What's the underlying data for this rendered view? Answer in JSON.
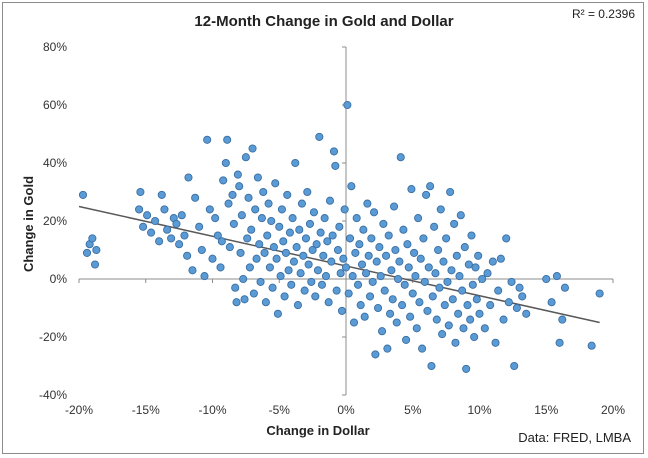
{
  "chart_data": {
    "type": "scatter",
    "title": "12-Month Change in Gold and Dollar",
    "xlabel": "Change in Dollar",
    "ylabel": "Change in Gold",
    "annotation": "R² = 0.2396",
    "source": "Data: FRED, LMBA",
    "xlim": [
      -20,
      20
    ],
    "ylim": [
      -40,
      80
    ],
    "x_ticks": [
      -20,
      -15,
      -10,
      -5,
      0,
      5,
      10,
      15,
      20
    ],
    "y_ticks": [
      -40,
      -20,
      0,
      20,
      40,
      60,
      80
    ],
    "x_tick_labels": [
      "-20%",
      "-15%",
      "-10%",
      "-5%",
      "0%",
      "5%",
      "10%",
      "15%",
      "20%"
    ],
    "y_tick_labels": [
      "-40%",
      "-20%",
      "0%",
      "20%",
      "40%",
      "60%",
      "80%"
    ],
    "grid": false,
    "marker_color": "#5b9bd5",
    "marker_edge": "#3a6fa3",
    "trendline": {
      "x": [
        -20,
        19
      ],
      "y": [
        25,
        -15
      ]
    },
    "points": [
      [
        -19.7,
        29
      ],
      [
        -19.4,
        9
      ],
      [
        -19.2,
        12
      ],
      [
        -19.0,
        14
      ],
      [
        -18.8,
        5
      ],
      [
        -18.7,
        10
      ],
      [
        -15.5,
        24
      ],
      [
        -15.4,
        30
      ],
      [
        -15.2,
        18
      ],
      [
        -14.9,
        22
      ],
      [
        -14.6,
        16
      ],
      [
        -14.3,
        20
      ],
      [
        -14.0,
        13
      ],
      [
        -13.8,
        29
      ],
      [
        -13.6,
        24
      ],
      [
        -13.4,
        17
      ],
      [
        -13.1,
        14
      ],
      [
        -12.9,
        21
      ],
      [
        -12.7,
        19
      ],
      [
        -12.5,
        12
      ],
      [
        -12.3,
        22
      ],
      [
        -12.1,
        15
      ],
      [
        -11.9,
        8
      ],
      [
        -11.8,
        35
      ],
      [
        -11.5,
        3
      ],
      [
        -11.3,
        28
      ],
      [
        -11.0,
        18
      ],
      [
        -10.8,
        10
      ],
      [
        -10.6,
        1
      ],
      [
        -10.4,
        48
      ],
      [
        -10.2,
        24
      ],
      [
        -10.0,
        7
      ],
      [
        -9.8,
        21
      ],
      [
        -9.6,
        15
      ],
      [
        -9.4,
        4
      ],
      [
        -9.3,
        13
      ],
      [
        -9.2,
        34
      ],
      [
        -9.0,
        40
      ],
      [
        -8.9,
        48
      ],
      [
        -8.8,
        26
      ],
      [
        -8.7,
        11
      ],
      [
        -8.5,
        29
      ],
      [
        -8.4,
        19
      ],
      [
        -8.3,
        -3
      ],
      [
        -8.2,
        -8
      ],
      [
        -8.1,
        36
      ],
      [
        -8.0,
        32
      ],
      [
        -7.9,
        9
      ],
      [
        -7.8,
        22
      ],
      [
        -7.7,
        0
      ],
      [
        -7.6,
        -7
      ],
      [
        -7.5,
        42
      ],
      [
        -7.4,
        14
      ],
      [
        -7.3,
        28
      ],
      [
        -7.2,
        4
      ],
      [
        -7.1,
        17
      ],
      [
        -7.0,
        45
      ],
      [
        -6.9,
        -5
      ],
      [
        -6.8,
        24
      ],
      [
        -6.7,
        7
      ],
      [
        -6.6,
        35
      ],
      [
        -6.5,
        12
      ],
      [
        -6.4,
        -1
      ],
      [
        -6.3,
        21
      ],
      [
        -6.2,
        30
      ],
      [
        -6.1,
        9
      ],
      [
        -6.0,
        -8
      ],
      [
        -5.9,
        15
      ],
      [
        -5.8,
        26
      ],
      [
        -5.7,
        4
      ],
      [
        -5.6,
        20
      ],
      [
        -5.5,
        -3
      ],
      [
        -5.4,
        11
      ],
      [
        -5.3,
        33
      ],
      [
        -5.2,
        7
      ],
      [
        -5.1,
        -12
      ],
      [
        -5.0,
        18
      ],
      [
        -4.9,
        1
      ],
      [
        -4.8,
        24
      ],
      [
        -4.7,
        13
      ],
      [
        -4.6,
        -6
      ],
      [
        -4.5,
        9
      ],
      [
        -4.4,
        29
      ],
      [
        -4.3,
        3
      ],
      [
        -4.2,
        16
      ],
      [
        -4.1,
        -2
      ],
      [
        -4.0,
        21
      ],
      [
        -3.9,
        6
      ],
      [
        -3.8,
        40
      ],
      [
        -3.7,
        11
      ],
      [
        -3.6,
        -9
      ],
      [
        -3.5,
        17
      ],
      [
        -3.4,
        2
      ],
      [
        -3.3,
        26
      ],
      [
        -3.2,
        8
      ],
      [
        -3.1,
        -4
      ],
      [
        -3.0,
        14
      ],
      [
        -2.9,
        30
      ],
      [
        -2.8,
        5
      ],
      [
        -2.7,
        19
      ],
      [
        -2.6,
        -1
      ],
      [
        -2.5,
        10
      ],
      [
        -2.4,
        23
      ],
      [
        -2.3,
        -6
      ],
      [
        -2.2,
        12
      ],
      [
        -2.1,
        3
      ],
      [
        -2.0,
        49
      ],
      [
        -1.9,
        16
      ],
      [
        -1.8,
        -2
      ],
      [
        -1.7,
        8
      ],
      [
        -1.6,
        21
      ],
      [
        -1.5,
        1
      ],
      [
        -1.4,
        13
      ],
      [
        -1.3,
        -8
      ],
      [
        -1.2,
        27
      ],
      [
        -1.1,
        6
      ],
      [
        -1.0,
        15
      ],
      [
        -0.9,
        44
      ],
      [
        -0.8,
        39
      ],
      [
        -0.7,
        -4
      ],
      [
        -0.6,
        10
      ],
      [
        -0.5,
        18
      ],
      [
        -0.4,
        2
      ],
      [
        -0.3,
        -11
      ],
      [
        -0.2,
        7
      ],
      [
        -0.1,
        24
      ],
      [
        0.0,
        4
      ],
      [
        0.1,
        60
      ],
      [
        0.2,
        -5
      ],
      [
        0.3,
        14
      ],
      [
        0.4,
        32
      ],
      [
        0.5,
        1
      ],
      [
        0.6,
        -15
      ],
      [
        0.7,
        9
      ],
      [
        0.8,
        21
      ],
      [
        0.9,
        -2
      ],
      [
        1.0,
        12
      ],
      [
        1.1,
        -9
      ],
      [
        1.2,
        5
      ],
      [
        1.3,
        17
      ],
      [
        1.4,
        -13
      ],
      [
        1.5,
        2
      ],
      [
        1.6,
        26
      ],
      [
        1.7,
        8
      ],
      [
        1.8,
        -6
      ],
      [
        1.9,
        14
      ],
      [
        2.0,
        -1
      ],
      [
        2.1,
        23
      ],
      [
        2.2,
        -26
      ],
      [
        2.3,
        6
      ],
      [
        2.4,
        -10
      ],
      [
        2.5,
        11
      ],
      [
        2.6,
        1
      ],
      [
        2.7,
        -18
      ],
      [
        2.8,
        19
      ],
      [
        2.9,
        -4
      ],
      [
        3.0,
        8
      ],
      [
        3.1,
        -24
      ],
      [
        3.2,
        15
      ],
      [
        3.3,
        -12
      ],
      [
        3.4,
        3
      ],
      [
        3.5,
        -7
      ],
      [
        3.6,
        25
      ],
      [
        3.7,
        10
      ],
      [
        3.8,
        -15
      ],
      [
        3.9,
        0
      ],
      [
        4.0,
        6
      ],
      [
        4.1,
        42
      ],
      [
        4.2,
        -9
      ],
      [
        4.3,
        17
      ],
      [
        4.4,
        -2
      ],
      [
        4.5,
        -21
      ],
      [
        4.6,
        12
      ],
      [
        4.7,
        4
      ],
      [
        4.8,
        -13
      ],
      [
        4.9,
        31
      ],
      [
        5.0,
        -5
      ],
      [
        5.1,
        9
      ],
      [
        5.2,
        1
      ],
      [
        5.3,
        -17
      ],
      [
        5.4,
        21
      ],
      [
        5.5,
        -8
      ],
      [
        5.6,
        7
      ],
      [
        5.7,
        -24
      ],
      [
        5.8,
        14
      ],
      [
        5.9,
        -1
      ],
      [
        6.0,
        29
      ],
      [
        6.1,
        -11
      ],
      [
        6.2,
        4
      ],
      [
        6.3,
        32
      ],
      [
        6.4,
        -30
      ],
      [
        6.5,
        -6
      ],
      [
        6.6,
        18
      ],
      [
        6.7,
        2
      ],
      [
        6.8,
        -14
      ],
      [
        6.9,
        10
      ],
      [
        7.0,
        -3
      ],
      [
        7.1,
        24
      ],
      [
        7.2,
        -19
      ],
      [
        7.3,
        6
      ],
      [
        7.4,
        -9
      ],
      [
        7.5,
        14
      ],
      [
        7.6,
        -1
      ],
      [
        7.7,
        -16
      ],
      [
        7.8,
        30
      ],
      [
        7.9,
        3
      ],
      [
        8.0,
        -7
      ],
      [
        8.1,
        19
      ],
      [
        8.2,
        -22
      ],
      [
        8.3,
        8
      ],
      [
        8.4,
        -12
      ],
      [
        8.5,
        1
      ],
      [
        8.6,
        22
      ],
      [
        8.7,
        -4
      ],
      [
        8.8,
        -17
      ],
      [
        8.9,
        11
      ],
      [
        9.0,
        -31
      ],
      [
        9.1,
        -9
      ],
      [
        9.2,
        5
      ],
      [
        9.3,
        -14
      ],
      [
        9.4,
        15
      ],
      [
        9.5,
        -2
      ],
      [
        9.6,
        -20
      ],
      [
        9.7,
        4
      ],
      [
        9.8,
        -7
      ],
      [
        9.9,
        8
      ],
      [
        10.0,
        -12
      ],
      [
        10.2,
        0
      ],
      [
        10.4,
        -17
      ],
      [
        10.6,
        2
      ],
      [
        10.8,
        -9
      ],
      [
        11.0,
        6
      ],
      [
        11.2,
        -22
      ],
      [
        11.4,
        -4
      ],
      [
        11.6,
        7
      ],
      [
        11.8,
        -14
      ],
      [
        12.0,
        14
      ],
      [
        12.2,
        -8
      ],
      [
        12.4,
        -1
      ],
      [
        12.6,
        -30
      ],
      [
        12.8,
        -10
      ],
      [
        13.0,
        -3
      ],
      [
        13.2,
        -6
      ],
      [
        13.5,
        -12
      ],
      [
        15.0,
        0
      ],
      [
        15.4,
        -8
      ],
      [
        15.8,
        1
      ],
      [
        16.0,
        -22
      ],
      [
        16.2,
        -14
      ],
      [
        16.4,
        -3
      ],
      [
        18.4,
        -23
      ],
      [
        19.0,
        -5
      ]
    ]
  }
}
